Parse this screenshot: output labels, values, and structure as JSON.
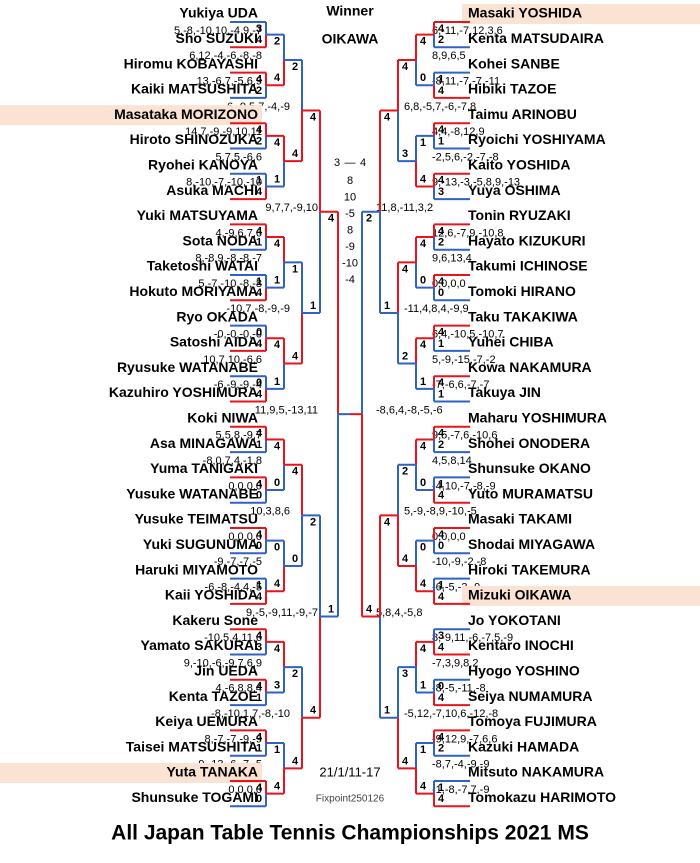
{
  "header": {
    "winner_label": "Winner",
    "winner": "OIKAWA"
  },
  "left": {
    "players": [
      {
        "name": "Yukiya UDA",
        "score": "5,-8,-10,10,-4,9,-7"
      },
      {
        "name": "Sho SUZUKI",
        "score": "6,12,-4,-6,-8,-8"
      },
      {
        "name": "Hiromu KOBAYASHI",
        "score": "13,-6,7,-5,6,9"
      },
      {
        "name": "Kaiki MATSUSHITA",
        "score": "-6,-9,5,7,-4,-9"
      },
      {
        "name": "Masataka MORIZONO",
        "score": "14,7,-9,-9,10,11",
        "highlight": true
      },
      {
        "name": "Hiroto SHINOZUKA",
        "score": "5,7,5,-6,6"
      },
      {
        "name": "Ryohei KANOYA",
        "score": "8,-10,-7,-10,-10"
      },
      {
        "name": "Asuka MACHI",
        "score": "9,7,7,-9,10"
      },
      {
        "name": "Yuki MATSUYAMA",
        "score": "4,-9,6,7,6"
      },
      {
        "name": "Sota NODA",
        "score": "8,-8,9,-8,-8,-7"
      },
      {
        "name": "Taketoshi WATAI",
        "score": "5,-7,-10,-8,-8"
      },
      {
        "name": "Hokuto MORIYAMA",
        "score": "-10,7,-8,-9,-9"
      },
      {
        "name": "Ryo OKADA",
        "score": "-0,-0,-0,-0"
      },
      {
        "name": "Satoshi AIDA",
        "score": "10,7,10,-6,6"
      },
      {
        "name": "Ryusuke WATANABE",
        "score": "-6,-9,-9,-4"
      },
      {
        "name": "Kazuhiro YOSHIMURA",
        "score": "11,9,5,-13,11"
      },
      {
        "name": "Koki NIWA",
        "score": "5,5,8,-9,7"
      },
      {
        "name": "Asa MINAGAWA",
        "score": "-8,0,7,4,-1,8"
      },
      {
        "name": "Yuma TANIGAKI",
        "score": "0,0,0,0"
      },
      {
        "name": "Yusuke WATANABE",
        "score": "10,3,8,6"
      },
      {
        "name": "Yusuke TEIMATSU",
        "score": "0,0,0,0"
      },
      {
        "name": "Yuki SUGUNUMA",
        "score": "-9,-7,-7,-5"
      },
      {
        "name": "Haruki MIYAMOTO",
        "score": "-6,-8,-4,4,-5"
      },
      {
        "name": "Kaii YOSHIDA",
        "score": "9,-5,-9,11,-9,-7"
      },
      {
        "name": "Kakeru Sone",
        "score": "-10,5,4,11,6"
      },
      {
        "name": "Yamato SAKURAI",
        "score": "9,-10,-6,-9,7,6,9"
      },
      {
        "name": "Jin UEDA",
        "score": "4,-6,8,8,4"
      },
      {
        "name": "Kenta TAZOE",
        "score": "-8,-10,1,7,-8,-10"
      },
      {
        "name": "Keiya UEMURA",
        "score": "8,-7,-7,-9,-9"
      },
      {
        "name": "Taisei MATSUSHITA",
        "score": "9,-13,-6,-7,-5"
      },
      {
        "name": "Yuta TANAKA",
        "score": "0,0,0,0",
        "highlight": true
      },
      {
        "name": "Shunsuke TOGAMI"
      }
    ],
    "rounds": [
      [
        [
          3,
          4
        ],
        [
          4,
          2
        ],
        [
          4,
          2
        ],
        [
          1,
          4
        ],
        [
          4,
          1
        ],
        [
          1,
          4
        ],
        [
          0,
          4
        ],
        [
          0,
          4
        ],
        [
          4,
          1
        ],
        [
          4,
          0
        ],
        [
          4,
          0
        ],
        [
          1,
          4
        ],
        [
          4,
          3
        ],
        [
          4,
          1
        ],
        [
          4,
          1
        ],
        [
          4,
          0
        ]
      ],
      [
        [
          2,
          4
        ],
        [
          4,
          1
        ],
        [
          4,
          1
        ],
        [
          4,
          1
        ],
        [
          4,
          0
        ],
        [
          0,
          4
        ],
        [
          4,
          3
        ],
        [
          1,
          4
        ]
      ],
      [
        [
          2,
          4
        ],
        [
          1,
          4
        ],
        [
          4,
          0
        ],
        [
          2,
          4
        ]
      ],
      [
        [
          4,
          1
        ],
        [
          2,
          4
        ]
      ],
      [
        [
          4,
          1
        ]
      ]
    ]
  },
  "right": {
    "players": [
      {
        "name": "Masaki YOSHIDA",
        "score": "6,-11,-7,12,3,6",
        "highlight": true
      },
      {
        "name": "Kenta MATSUDAIRA",
        "score": "8,9,6,5"
      },
      {
        "name": "Kohei SANBE",
        "score": "-8,11,-7,-7,-11"
      },
      {
        "name": "Hibiki TAZOE",
        "score": "6,8,-5,7,-6,-7,8"
      },
      {
        "name": "Taimu ARINOBU",
        "score": "4,4,-8,12,9"
      },
      {
        "name": "Ryoichi YOSHIYAMA",
        "score": "-2,5,6,-2,-7,-8"
      },
      {
        "name": "Kaito YOSHIDA",
        "score": "9,-13,-3,-5,8,9,-13"
      },
      {
        "name": "Yuya OSHIMA",
        "score": "11,8,-11,3,2"
      },
      {
        "name": "Tonin RYUZAKI",
        "score": "12,6,-7,9,-10,8"
      },
      {
        "name": "Hayato KIZUKURI",
        "score": "9,6,13,4"
      },
      {
        "name": "Takumi ICHINOSE",
        "score": "0,0,0,0"
      },
      {
        "name": "Tomoki HIRANO",
        "score": "-11,4,8,4,-9,9"
      },
      {
        "name": "Taku TAKAKIWA",
        "score": "6,4,-10,5,-10,7"
      },
      {
        "name": "Yuhei CHIBA",
        "score": "5,-9,-15,-7,-2"
      },
      {
        "name": "Kowa NAKAMURA",
        "score": "-7,-6,6,-7,-7"
      },
      {
        "name": "Takuya JIN",
        "score": "-8,6,4,-8,-5,-6"
      },
      {
        "name": "Maharu YOSHIMURA",
        "score": "9,5,-7,6,-10,6"
      },
      {
        "name": "Shohei ONODERA",
        "score": "4,5,8,14"
      },
      {
        "name": "Shunsuke OKANO",
        "score": "-4,10,-7,-8,-9"
      },
      {
        "name": "Yuto MURAMATSU",
        "score": "5,-9,-8,9,-10,-5"
      },
      {
        "name": "Masaki TAKAMI",
        "score": "0,0,0,0"
      },
      {
        "name": "Shodai MIYAGAWA",
        "score": "-10,-9,-2,-8"
      },
      {
        "name": "Hiroki TAKEMURA",
        "score": "-6,-5,-3,-9"
      },
      {
        "name": "Mizuki OIKAWA",
        "score": "5,8,4,-5,8",
        "highlight": true
      },
      {
        "name": "Jo YOKOTANI",
        "score": "8,-9,11,-6,-7,5,-9"
      },
      {
        "name": "Kentaro INOCHI",
        "score": "-7,3,9,8,2"
      },
      {
        "name": "Hyogo YOSHINO",
        "score": "-8,-5,-11,-8"
      },
      {
        "name": "Seiya NUMAMURA",
        "score": "-5,12,-7,10,6,-12,-8"
      },
      {
        "name": "Tomoya FUJIMURA",
        "score": "-9,12,9,-7,6,6"
      },
      {
        "name": "Kazuki HAMADA",
        "score": "-8,7,-4,-9,-9"
      },
      {
        "name": "Mitsuto NAKAMURA",
        "score": "-1,-8,-7,7,-9"
      },
      {
        "name": "Tomokazu HARIMOTO"
      }
    ],
    "rounds": [
      [
        [
          4,
          2
        ],
        [
          1,
          4
        ],
        [
          4,
          1
        ],
        [
          4,
          3
        ],
        [
          4,
          2
        ],
        [
          4,
          0
        ],
        [
          4,
          1
        ],
        [
          4,
          1
        ],
        [
          4,
          2
        ],
        [
          1,
          4
        ],
        [
          4,
          0
        ],
        [
          1,
          4
        ],
        [
          3,
          4
        ],
        [
          0,
          4
        ],
        [
          4,
          2
        ],
        [
          1,
          4
        ]
      ],
      [
        [
          4,
          0
        ],
        [
          1,
          4
        ],
        [
          4,
          0
        ],
        [
          4,
          1
        ],
        [
          4,
          0
        ],
        [
          0,
          4
        ],
        [
          4,
          1
        ],
        [
          1,
          4
        ]
      ],
      [
        [
          4,
          3
        ],
        [
          4,
          2
        ],
        [
          2,
          4
        ],
        [
          3,
          4
        ]
      ],
      [
        [
          4,
          1
        ],
        [
          4,
          1
        ]
      ],
      [
        [
          2,
          4
        ]
      ]
    ]
  },
  "final": {
    "left": 3,
    "dash": "—",
    "right": 4,
    "games": [
      8,
      10,
      -5,
      8,
      -9,
      -10,
      -4
    ]
  },
  "date": "21/1/11-17",
  "credit": "Fixpoint250126",
  "title": "All Japan Table Tennis Championships 2021 MS"
}
